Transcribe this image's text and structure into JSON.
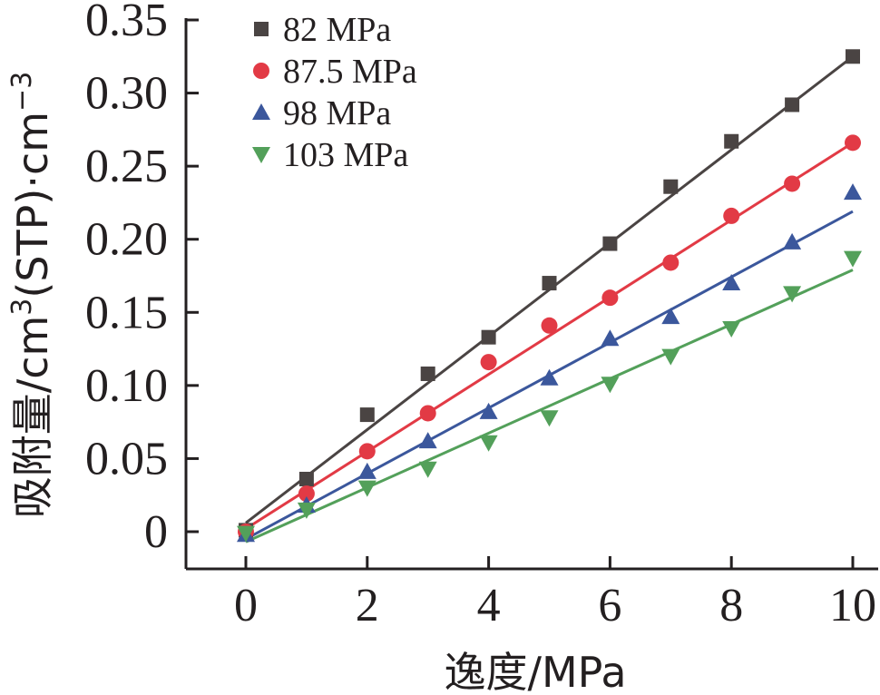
{
  "chart_data": {
    "type": "scatter",
    "title": "",
    "xlabel": "逸度/MPa",
    "ylabel": "吸附量/cm³(STP)·cm⁻³",
    "ylabel_parts": [
      "吸附量/cm",
      "3",
      "(STP)·cm",
      "−3"
    ],
    "xlim": [
      -1,
      10
    ],
    "ylim": [
      -0.025,
      0.35
    ],
    "xticks": [
      "0",
      "2",
      "4",
      "6",
      "8",
      "10"
    ],
    "yticks": [
      "0",
      "0.05",
      "0.10",
      "0.15",
      "0.20",
      "0.25",
      "0.30",
      "0.35"
    ],
    "grid": false,
    "legend_position": "top-left",
    "x": [
      0,
      1,
      2,
      3,
      4,
      5,
      6,
      7,
      8,
      9,
      10
    ],
    "series": [
      {
        "name": "82 MPa",
        "marker": "square",
        "color": "#4a4443",
        "values": [
          0.001,
          0.036,
          0.08,
          0.108,
          0.133,
          0.17,
          0.197,
          0.236,
          0.267,
          0.292,
          0.325
        ],
        "fit": [
          0.006,
          0.325
        ]
      },
      {
        "name": "87.5 MPa",
        "marker": "circle",
        "color": "#e23a45",
        "values": [
          0.0,
          0.026,
          0.055,
          0.081,
          0.116,
          0.141,
          0.16,
          0.184,
          0.216,
          0.238,
          0.266
        ],
        "fit": [
          0.002,
          0.266
        ]
      },
      {
        "name": "98 MPa",
        "marker": "triangle-up",
        "color": "#3b579c",
        "values": [
          -0.002,
          0.018,
          0.041,
          0.062,
          0.082,
          0.105,
          0.132,
          0.147,
          0.17,
          0.198,
          0.232
        ],
        "fit": [
          -0.005,
          0.219
        ]
      },
      {
        "name": "103 MPa",
        "marker": "triangle-down",
        "color": "#53a05a",
        "values": [
          -0.001,
          0.015,
          0.03,
          0.043,
          0.061,
          0.078,
          0.101,
          0.12,
          0.139,
          0.163,
          0.187
        ],
        "fit": [
          -0.007,
          0.179
        ]
      }
    ]
  }
}
